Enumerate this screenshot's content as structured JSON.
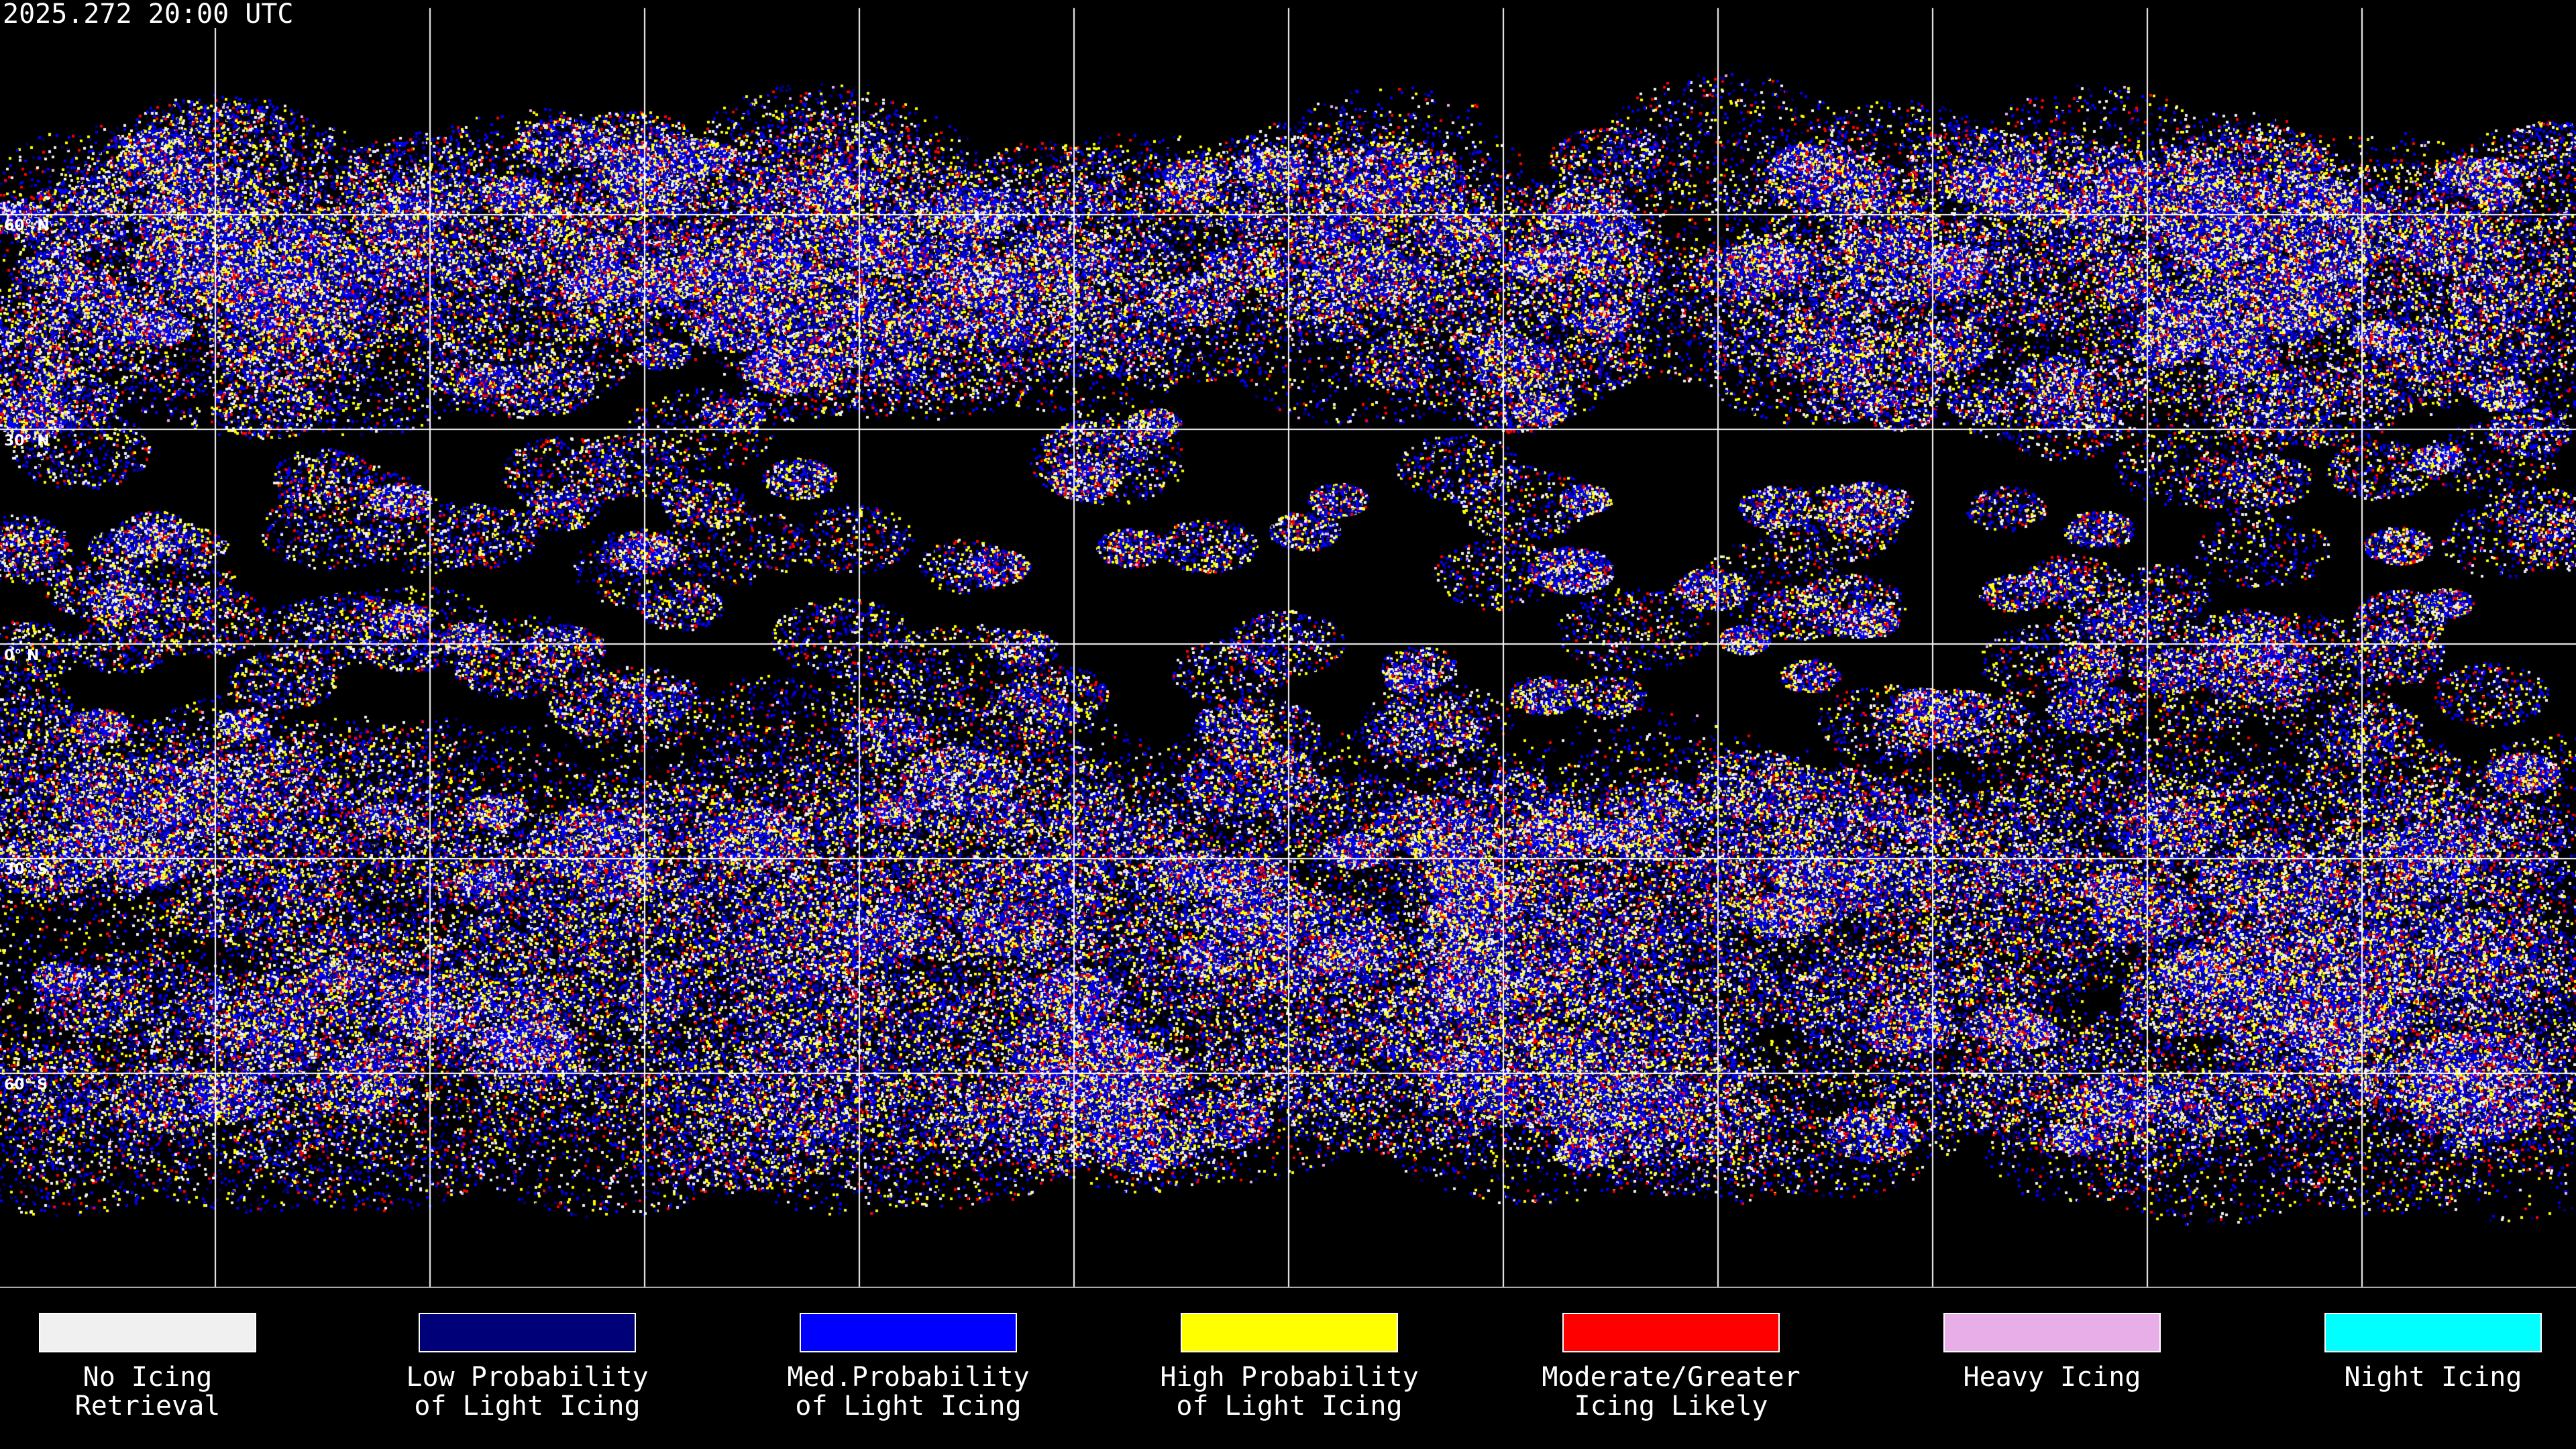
{
  "header": {
    "timestamp": "2025.272 20:00 UTC"
  },
  "map": {
    "projection": "equirectangular",
    "grid_interval_deg": 30,
    "lat_labels": [
      "60° N",
      "30° N",
      "0° N",
      "30° S",
      "60° S"
    ],
    "background_color": "#000000",
    "grid_color": "#ffffff",
    "coastline_color": "#ffffff"
  },
  "legend": {
    "items": [
      {
        "line1": "No Icing",
        "line2": "Retrieval",
        "color": "#f0f0f0"
      },
      {
        "line1": "Low Probability",
        "line2": "of Light Icing",
        "color": "#000078"
      },
      {
        "line1": "Med.Probability",
        "line2": "of Light Icing",
        "color": "#0000ff"
      },
      {
        "line1": "High Probability",
        "line2": "of Light Icing",
        "color": "#ffff00"
      },
      {
        "line1": "Moderate/Greater",
        "line2": "Icing Likely",
        "color": "#ff0000"
      },
      {
        "line1": "Heavy Icing",
        "line2": "",
        "color": "#e8aee8"
      },
      {
        "line1": "Night Icing",
        "line2": "",
        "color": "#00ffff"
      }
    ]
  }
}
